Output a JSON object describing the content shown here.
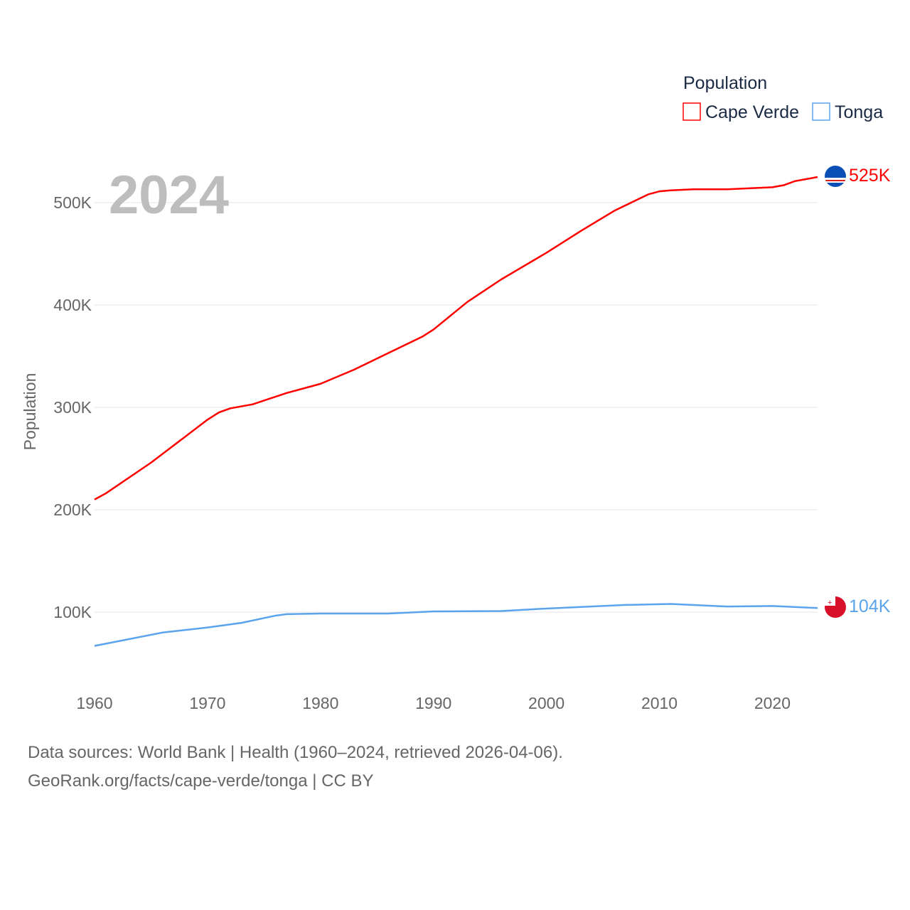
{
  "chart_data": {
    "type": "line",
    "title": "Population",
    "ylabel": "Population",
    "xlabel": "",
    "year_label": "2024",
    "xlim": [
      1960,
      2024
    ],
    "ylim": [
      0,
      550000
    ],
    "x_ticks": [
      "1960",
      "1970",
      "1980",
      "1990",
      "2000",
      "2010",
      "2020"
    ],
    "y_ticks": [
      "100K",
      "200K",
      "300K",
      "400K",
      "500K"
    ],
    "grid": true,
    "legend_title": "Population",
    "legend_position": "top-right",
    "series": [
      {
        "name": "Cape Verde",
        "color": "#ff0000",
        "end_label": "525K",
        "x": [
          1960,
          1961,
          1965,
          1970,
          1971,
          1972,
          1974,
          1977,
          1980,
          1983,
          1986,
          1989,
          1990,
          1993,
          1996,
          2000,
          2003,
          2006,
          2009,
          2010,
          2011,
          2013,
          2016,
          2020,
          2021,
          2022,
          2024
        ],
        "values": [
          210,
          216,
          246,
          288,
          295,
          299,
          303,
          314,
          323,
          337,
          353,
          369,
          376,
          403,
          425,
          451,
          472,
          492,
          508,
          511,
          512,
          513,
          513,
          515,
          517,
          521,
          525
        ]
      },
      {
        "name": "Tonga",
        "color": "#5ba4ec",
        "end_label": "104K",
        "x": [
          1960,
          1966,
          1970,
          1973,
          1976,
          1977,
          1980,
          1986,
          1990,
          1996,
          2000,
          2007,
          2011,
          2016,
          2020,
          2024
        ],
        "values": [
          67,
          80,
          85,
          89.5,
          96.5,
          98,
          98.6,
          98.6,
          100.7,
          101,
          103.5,
          107,
          108,
          105.5,
          106,
          104
        ]
      }
    ],
    "value_units": "thousands"
  },
  "footer": {
    "line1": "Data sources: World Bank | Health (1960–2024, retrieved 2026-04-06).",
    "line2": "GeoRank.org/facts/cape-verde/tonga | CC BY"
  }
}
